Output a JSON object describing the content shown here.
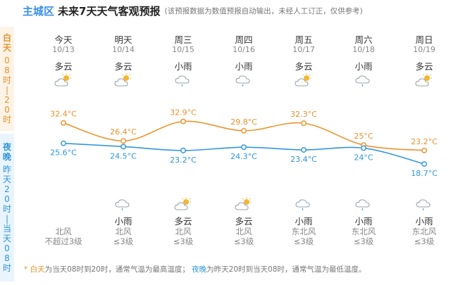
{
  "header": {
    "city": "主城区",
    "title": "未来7天天气客观预报",
    "note": "(该预报数据为数值预报自动输出，未经人工订正，仅供参考)"
  },
  "side": {
    "day_title": "白天",
    "day_range": "08时|20时",
    "night_title": "夜晚",
    "night_range": "昨天20时|当天08时"
  },
  "days": [
    {
      "name": "今天",
      "date": "10/13",
      "day_weather": "多云",
      "day_icon": "partly-cloudy-icon",
      "night_weather": "",
      "night_icon": "",
      "wind_dir": "北风",
      "wind_level": "不超过3级"
    },
    {
      "name": "明天",
      "date": "10/14",
      "day_weather": "多云",
      "day_icon": "partly-cloudy-icon",
      "night_weather": "小雨",
      "night_icon": "light-rain-icon",
      "wind_dir": "北风",
      "wind_level": "≤3级"
    },
    {
      "name": "周三",
      "date": "10/15",
      "day_weather": "小雨",
      "day_icon": "light-rain-icon",
      "night_weather": "多云",
      "night_icon": "partly-cloudy-icon",
      "wind_dir": "北风",
      "wind_level": "≤3级"
    },
    {
      "name": "周四",
      "date": "10/16",
      "day_weather": "小雨",
      "day_icon": "light-rain-icon",
      "night_weather": "多云",
      "night_icon": "partly-cloudy-icon",
      "wind_dir": "北风",
      "wind_level": "≤3级"
    },
    {
      "name": "周五",
      "date": "10/17",
      "day_weather": "多云",
      "day_icon": "partly-cloudy-icon",
      "night_weather": "小雨",
      "night_icon": "light-rain-icon",
      "wind_dir": "东北风",
      "wind_level": "≤3级"
    },
    {
      "name": "周六",
      "date": "10/18",
      "day_weather": "小雨",
      "day_icon": "light-rain-icon",
      "night_weather": "小雨",
      "night_icon": "light-rain-icon",
      "wind_dir": "东北风",
      "wind_level": "≤3级"
    },
    {
      "name": "周日",
      "date": "10/19",
      "day_weather": "多云",
      "day_icon": "partly-cloudy-icon",
      "night_weather": "小雨",
      "night_icon": "light-rain-icon",
      "wind_dir": "东北风",
      "wind_level": "≤3级"
    }
  ],
  "chart_data": {
    "type": "line",
    "categories": [
      "今天",
      "明天",
      "周三",
      "周四",
      "周五",
      "周六",
      "周日"
    ],
    "series": [
      {
        "name": "白天",
        "values": [
          32.4,
          26.4,
          32.9,
          29.8,
          32.3,
          25.0,
          23.2
        ],
        "labels": [
          "32.4°C",
          "26.4°C",
          "32.9°C",
          "29.8°C",
          "32.3°C",
          "25°C",
          "23.2°C"
        ],
        "color": "#f0932e"
      },
      {
        "name": "夜晚",
        "values": [
          25.6,
          24.5,
          23.2,
          24.3,
          23.4,
          24.0,
          18.7
        ],
        "labels": [
          "25.6°C",
          "24.5°C",
          "23.2°C",
          "24.3°C",
          "23.4°C",
          "24°C",
          "18.7°C"
        ],
        "color": "#3496de"
      }
    ],
    "grid": false
  },
  "footer": {
    "star": "*",
    "day_word": "白天",
    "day_text": "为当天08时到20时，通常气温为最高温度；",
    "night_word": "夜晚",
    "night_text": "为昨天20时到当天08时，通常气温为最低温度。"
  }
}
